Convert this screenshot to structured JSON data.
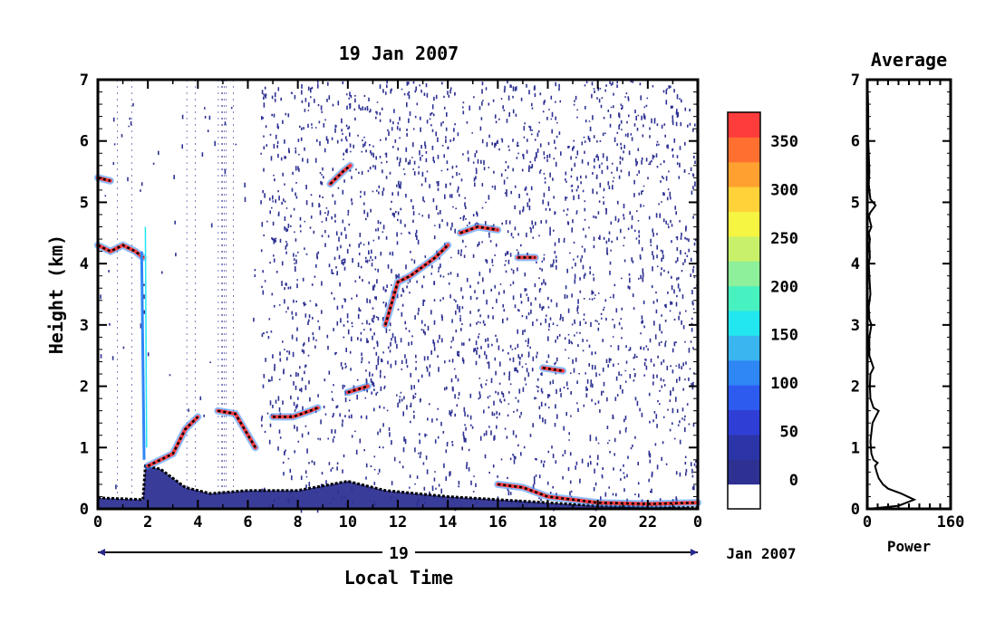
{
  "chart_data": [
    {
      "type": "heatmap",
      "title": "19 Jan 2007",
      "xlabel": "Local Time",
      "ylabel": "Height (km)",
      "x_ticks": [
        "0",
        "2",
        "4",
        "6",
        "8",
        "10",
        "12",
        "14",
        "16",
        "18",
        "20",
        "22",
        "0"
      ],
      "y_ticks": [
        "0",
        "1",
        "2",
        "3",
        "4",
        "5",
        "6",
        "7"
      ],
      "xlim": [
        0,
        24
      ],
      "ylim": [
        0,
        7
      ],
      "date_axis_day": "19",
      "date_axis_month": "Jan 2007",
      "colorbar": {
        "ticks": [
          "0",
          "50",
          "100",
          "150",
          "200",
          "250",
          "300",
          "350"
        ],
        "range": [
          -30,
          380
        ],
        "colors": [
          "#ffffff",
          "#2e3192",
          "#2b35a8",
          "#2f3fd6",
          "#2d5bf0",
          "#2f86f5",
          "#3ab5f0",
          "#22e6f0",
          "#48f2c0",
          "#8ef09a",
          "#c8f06a",
          "#f5f542",
          "#ffd23a",
          "#ffa030",
          "#ff7030",
          "#ff3c3c"
        ]
      },
      "features": [
        {
          "type": "boundary_layer",
          "points": [
            [
              0,
              0.18
            ],
            [
              1.8,
              0.15
            ],
            [
              1.9,
              0.7
            ],
            [
              2.5,
              0.65
            ],
            [
              3.5,
              0.35
            ],
            [
              4.5,
              0.25
            ],
            [
              6,
              0.3
            ],
            [
              8,
              0.3
            ],
            [
              10,
              0.45
            ],
            [
              11.5,
              0.3
            ],
            [
              14,
              0.2
            ],
            [
              16,
              0.15
            ],
            [
              18,
              0.1
            ],
            [
              20,
              0.05
            ],
            [
              24,
              0.02
            ]
          ]
        },
        {
          "type": "layer",
          "points": [
            [
              0,
              4.3
            ],
            [
              0.5,
              4.2
            ],
            [
              1,
              4.3
            ],
            [
              1.5,
              4.2
            ],
            [
              1.8,
              4.1
            ]
          ]
        },
        {
          "type": "layer",
          "points": [
            [
              0,
              5.4
            ],
            [
              0.5,
              5.35
            ]
          ]
        },
        {
          "type": "layer",
          "points": [
            [
              2,
              0.7
            ],
            [
              3,
              0.9
            ],
            [
              3.5,
              1.3
            ],
            [
              4,
              1.5
            ]
          ]
        },
        {
          "type": "layer",
          "points": [
            [
              4.8,
              1.6
            ],
            [
              5.5,
              1.55
            ],
            [
              6.3,
              1.0
            ]
          ]
        },
        {
          "type": "layer",
          "points": [
            [
              7,
              1.5
            ],
            [
              7.8,
              1.5
            ],
            [
              8.5,
              1.6
            ],
            [
              8.8,
              1.65
            ]
          ]
        },
        {
          "type": "layer",
          "points": [
            [
              10,
              1.9
            ],
            [
              10.8,
              2.0
            ]
          ]
        },
        {
          "type": "layer",
          "points": [
            [
              11.5,
              3.0
            ],
            [
              12,
              3.7
            ],
            [
              12.5,
              3.8
            ],
            [
              13,
              3.95
            ],
            [
              13.5,
              4.1
            ],
            [
              14,
              4.3
            ]
          ]
        },
        {
          "type": "layer",
          "points": [
            [
              14.5,
              4.5
            ],
            [
              15.2,
              4.6
            ],
            [
              16,
              4.55
            ]
          ]
        },
        {
          "type": "layer",
          "points": [
            [
              16.8,
              4.1
            ],
            [
              17.5,
              4.1
            ]
          ]
        },
        {
          "type": "layer",
          "points": [
            [
              17.8,
              2.3
            ],
            [
              18.6,
              2.25
            ]
          ]
        },
        {
          "type": "layer",
          "points": [
            [
              9.3,
              5.3
            ],
            [
              9.8,
              5.5
            ],
            [
              10.1,
              5.6
            ]
          ]
        },
        {
          "type": "layer",
          "points": [
            [
              16,
              0.4
            ],
            [
              17,
              0.35
            ],
            [
              18,
              0.2
            ],
            [
              19,
              0.15
            ],
            [
              20,
              0.1
            ],
            [
              22,
              0.08
            ],
            [
              24,
              0.1
            ]
          ]
        }
      ]
    },
    {
      "type": "line",
      "title": "Average",
      "xlabel": "Power",
      "x_ticks": [
        "0",
        "160"
      ],
      "y_ticks": [
        "0",
        "1",
        "2",
        "3",
        "4",
        "5",
        "6",
        "7"
      ],
      "xlim": [
        0,
        160
      ],
      "ylim": [
        0,
        7
      ],
      "series": [
        {
          "x": [
            2,
            60,
            90,
            65,
            40,
            30,
            22,
            18,
            15,
            20,
            12,
            8,
            7,
            6,
            10,
            22,
            12,
            6,
            5,
            6,
            12,
            4,
            4,
            8,
            4,
            3,
            6,
            4,
            3,
            5,
            4,
            5,
            3,
            8,
            5,
            3,
            16,
            6,
            4,
            3,
            4,
            3,
            2,
            2,
            1,
            0
          ],
          "y": [
            0,
            0.05,
            0.15,
            0.25,
            0.33,
            0.4,
            0.5,
            0.6,
            0.7,
            0.75,
            0.8,
            0.9,
            1,
            1.1,
            1.4,
            1.6,
            1.65,
            1.8,
            2,
            2.2,
            2.3,
            2.5,
            2.8,
            3,
            3.1,
            3.3,
            3.5,
            3.8,
            4,
            4.1,
            4.3,
            4.4,
            4.5,
            4.6,
            4.7,
            4.8,
            4.95,
            5.05,
            5.2,
            5.3,
            5.5,
            5.8,
            6,
            6.5,
            6.8,
            7
          ]
        }
      ]
    }
  ]
}
